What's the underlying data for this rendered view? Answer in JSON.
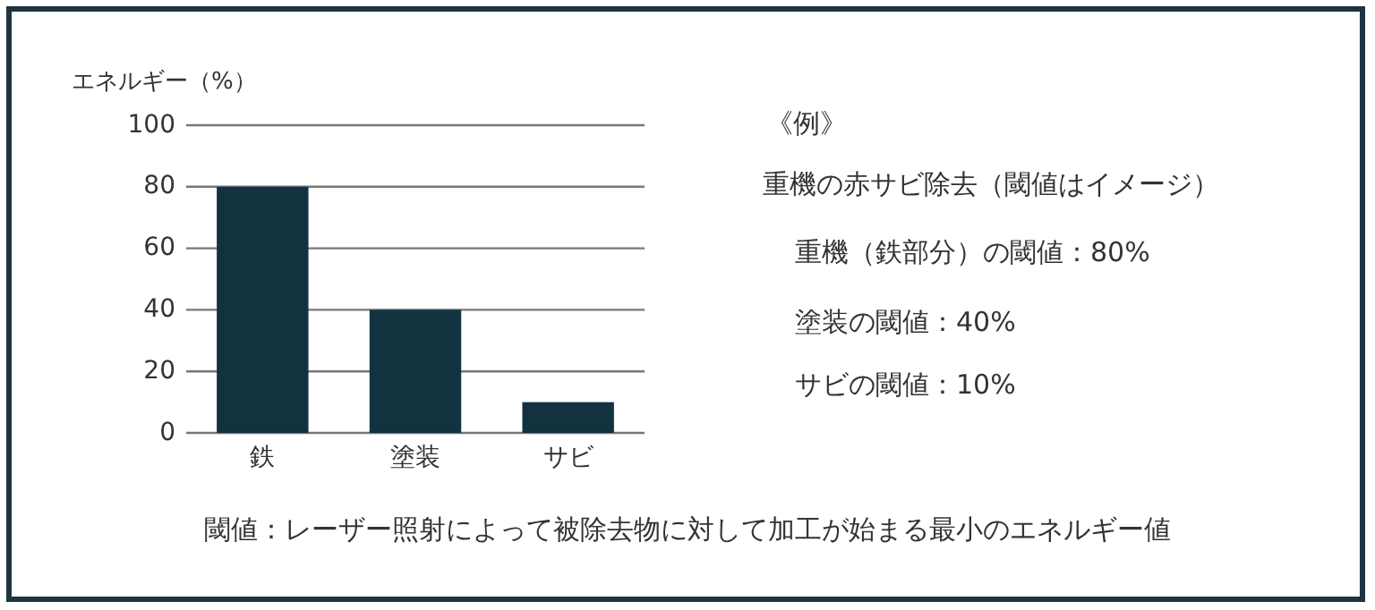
{
  "chart_data": {
    "type": "bar",
    "ylabel": "エネルギー（%）",
    "categories": [
      "鉄",
      "塗装",
      "サビ"
    ],
    "values": [
      80,
      40,
      10
    ],
    "color": "#123240",
    "ylim": [
      0,
      100
    ],
    "yticks": [
      0,
      20,
      40,
      60,
      80,
      100
    ],
    "grid": "y",
    "annotations": [
      "《例》",
      "重機の赤サビ除去（閾値はイメージ）",
      "重機（鉄部分）の閾値：80%",
      "塗装の閾値：40%",
      "サビの閾値：10%",
      "閾値：レーザー照射によって被除去物に対して加工が始まる最小のエネルギー値"
    ]
  }
}
